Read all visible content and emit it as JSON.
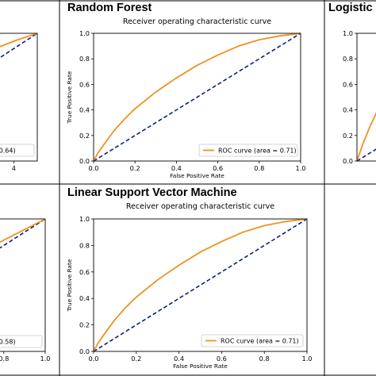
{
  "panels": {
    "top_middle": {
      "title": "Random Forest"
    },
    "top_right": {
      "title": "Logistic R"
    },
    "bottom_middle": {
      "title": "Linear Support Vector Machine"
    }
  },
  "colors": {
    "roc": "#f0921c",
    "chance": "#0f1f80",
    "grid": "#000000"
  },
  "chart_data": [
    {
      "panel": "top_left",
      "type": "line",
      "title": "",
      "xlabel": "",
      "ylabel": "",
      "xticks": [
        "4"
      ],
      "legend": "area = 0.64)",
      "xlim": [
        0,
        1
      ],
      "ylim": [
        0,
        1
      ],
      "series": [
        {
          "name": "ROC curve",
          "x": [
            0.55,
            0.62,
            0.7,
            0.8,
            0.9,
            1.0
          ],
          "y": [
            0.73,
            0.78,
            0.83,
            0.89,
            0.95,
            1.0
          ]
        }
      ]
    },
    {
      "panel": "top_middle",
      "type": "line",
      "title": "Receiver operating characteristic curve",
      "xlabel": "False Positive Rate",
      "ylabel": "True Positive Rate",
      "xlim": [
        0,
        1
      ],
      "ylim": [
        0,
        1
      ],
      "xticks": [
        "0.0",
        "0.2",
        "0.4",
        "0.6",
        "0.8",
        "1.0"
      ],
      "yticks": [
        "0.0",
        "0.2",
        "0.4",
        "0.6",
        "0.8",
        "1.0"
      ],
      "legend": "ROC curve (area = 0.71)",
      "legend_position": "lower right",
      "series": [
        {
          "name": "ROC curve",
          "x": [
            0,
            0.02,
            0.05,
            0.1,
            0.15,
            0.2,
            0.3,
            0.4,
            0.5,
            0.6,
            0.7,
            0.8,
            0.9,
            1.0
          ],
          "y": [
            0,
            0.06,
            0.13,
            0.24,
            0.33,
            0.41,
            0.54,
            0.65,
            0.75,
            0.83,
            0.9,
            0.95,
            0.98,
            1.0
          ]
        }
      ]
    },
    {
      "panel": "top_right",
      "type": "line",
      "title": "",
      "xlabel": "",
      "ylabel": "",
      "xticks": [
        "0.0"
      ],
      "yticks": [
        "0.0",
        "0.2",
        "0.4",
        "0.6",
        "0.8",
        "1.0"
      ],
      "xlim": [
        0,
        1
      ],
      "ylim": [
        0,
        1
      ],
      "series": [
        {
          "name": "ROC curve",
          "x": [
            0,
            0.03,
            0.06,
            0.1
          ],
          "y": [
            0,
            0.14,
            0.26,
            0.4
          ]
        }
      ]
    },
    {
      "panel": "bottom_left",
      "type": "line",
      "title": "",
      "xlabel": "",
      "ylabel": "",
      "xticks": [
        "0.8",
        "1.0"
      ],
      "legend": "area = 0.58)",
      "xlim": [
        0,
        1
      ],
      "ylim": [
        0,
        1
      ],
      "series": [
        {
          "name": "ROC curve",
          "x": [
            0.55,
            0.62,
            0.7,
            0.8,
            0.9,
            1.0
          ],
          "y": [
            0.62,
            0.68,
            0.75,
            0.84,
            0.92,
            1.0
          ]
        }
      ]
    },
    {
      "panel": "bottom_middle",
      "type": "line",
      "title": "Receiver operating characteristic curve",
      "xlabel": "False Positive Rate",
      "ylabel": "True Positive Rate",
      "xlim": [
        0,
        1
      ],
      "ylim": [
        0,
        1
      ],
      "xticks": [
        "0.0",
        "0.2",
        "0.4",
        "0.6",
        "0.8",
        "1.0"
      ],
      "yticks": [
        "0.0",
        "0.2",
        "0.4",
        "0.6",
        "0.8",
        "1.0"
      ],
      "legend": "ROC curve (area = 0.71)",
      "legend_position": "lower right",
      "series": [
        {
          "name": "ROC curve",
          "x": [
            0,
            0.02,
            0.05,
            0.1,
            0.15,
            0.2,
            0.3,
            0.4,
            0.5,
            0.6,
            0.7,
            0.8,
            0.9,
            1.0
          ],
          "y": [
            0,
            0.06,
            0.13,
            0.24,
            0.33,
            0.41,
            0.54,
            0.65,
            0.75,
            0.83,
            0.9,
            0.95,
            0.98,
            1.0
          ]
        }
      ]
    }
  ]
}
